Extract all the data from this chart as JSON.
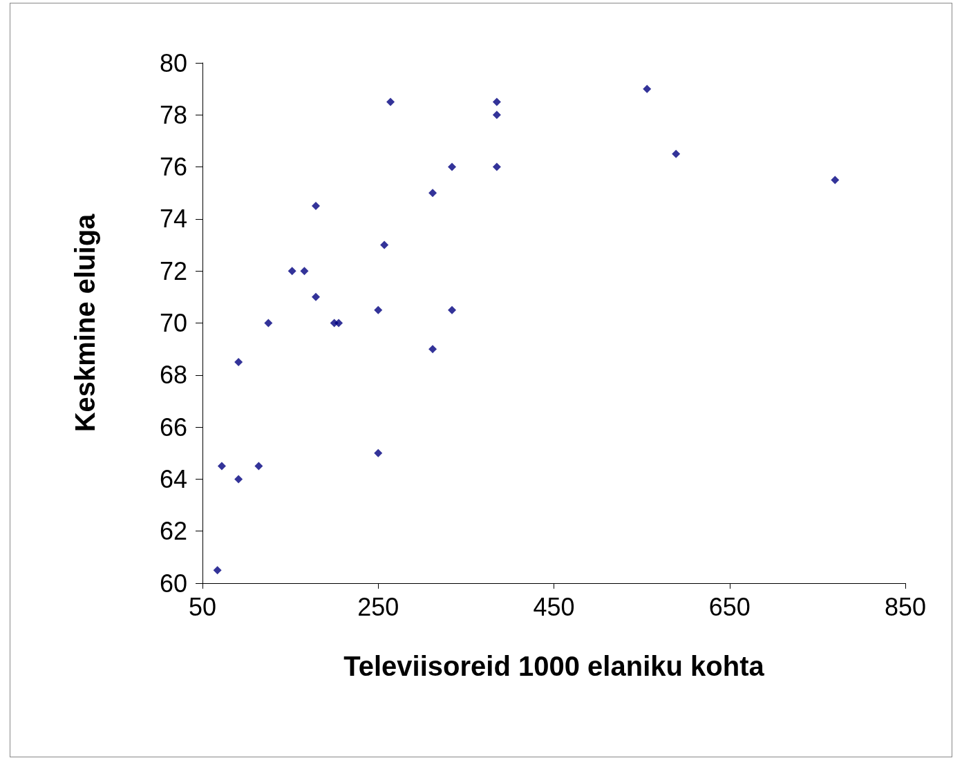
{
  "chart_data": {
    "type": "scatter",
    "xlabel": "Televiisoreid 1000 elaniku kohta",
    "ylabel": "Keskmine eluiga",
    "x": [
      67,
      72,
      91,
      91,
      114,
      125,
      152,
      166,
      179,
      179,
      200,
      205,
      250,
      250,
      257,
      264,
      312,
      312,
      334,
      334,
      385,
      385,
      385,
      556,
      589,
      770
    ],
    "values": [
      60.5,
      64.5,
      64,
      68.5,
      64.5,
      70,
      72,
      72,
      74.5,
      71,
      70,
      70,
      70.5,
      65,
      73,
      78.5,
      75,
      69,
      76,
      70.5,
      78.5,
      78,
      76,
      79,
      76.5,
      75.5
    ],
    "color": "#000080",
    "marker": "diamond",
    "xlim": [
      50,
      850
    ],
    "xticks": [
      50,
      250,
      450,
      650,
      850
    ],
    "ylim": [
      60,
      80
    ],
    "yticks": [
      60,
      62,
      64,
      66,
      68,
      70,
      72,
      74,
      76,
      78,
      80
    ],
    "grid": false
  }
}
